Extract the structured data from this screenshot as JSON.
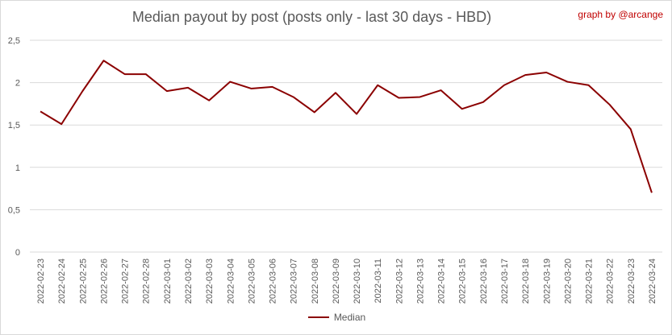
{
  "chart_data": {
    "type": "line",
    "title": "Median payout by post (posts only - last 30 days - HBD)",
    "credit": "graph by @arcange",
    "x": [
      "2022-02-23",
      "2022-02-24",
      "2022-02-25",
      "2022-02-26",
      "2022-02-27",
      "2022-02-28",
      "2022-03-01",
      "2022-03-02",
      "2022-03-03",
      "2022-03-04",
      "2022-03-05",
      "2022-03-06",
      "2022-03-07",
      "2022-03-08",
      "2022-03-09",
      "2022-03-10",
      "2022-03-11",
      "2022-03-12",
      "2022-03-13",
      "2022-03-14",
      "2022-03-15",
      "2022-03-16",
      "2022-03-17",
      "2022-03-18",
      "2022-03-19",
      "2022-03-20",
      "2022-03-21",
      "2022-03-22",
      "2022-03-23",
      "2022-03-24"
    ],
    "series": [
      {
        "name": "Median",
        "color": "#8b0000",
        "values": [
          1.66,
          1.51,
          1.9,
          2.26,
          2.1,
          2.1,
          1.9,
          1.94,
          1.79,
          2.01,
          1.93,
          1.95,
          1.83,
          1.65,
          1.88,
          1.63,
          1.97,
          1.82,
          1.83,
          1.91,
          1.69,
          1.77,
          1.97,
          2.09,
          2.12,
          2.01,
          1.97,
          1.74,
          1.45,
          0.7
        ]
      }
    ],
    "yticks": [
      "0",
      "0,5",
      "1",
      "1,5",
      "2",
      "2,5"
    ],
    "ylim": [
      0,
      2.5
    ],
    "grid": true,
    "legend_position": "bottom"
  }
}
